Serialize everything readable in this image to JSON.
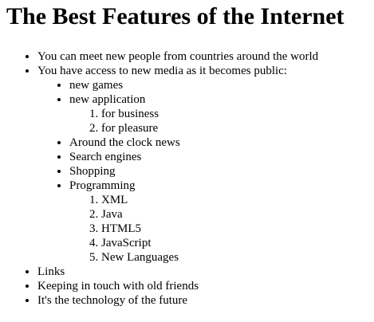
{
  "title": "The Best Features of the Internet",
  "items": {
    "meet_people": "You can meet new people from countries around the world",
    "access_media": "You have access to new media as it becomes public:",
    "new_games": "new games",
    "new_application": "new application",
    "for_business": "for business",
    "for_pleasure": "for pleasure",
    "news": "Around the clock news",
    "search": "Search engines",
    "shopping": "Shopping",
    "programming": "Programming",
    "xml": "XML",
    "java": "Java",
    "html5": "HTML5",
    "javascript": "JavaScript",
    "new_languages": "New Languages",
    "links": "Links",
    "old_friends": "Keeping in touch with old friends",
    "technology": "It's the technology of the future"
  }
}
